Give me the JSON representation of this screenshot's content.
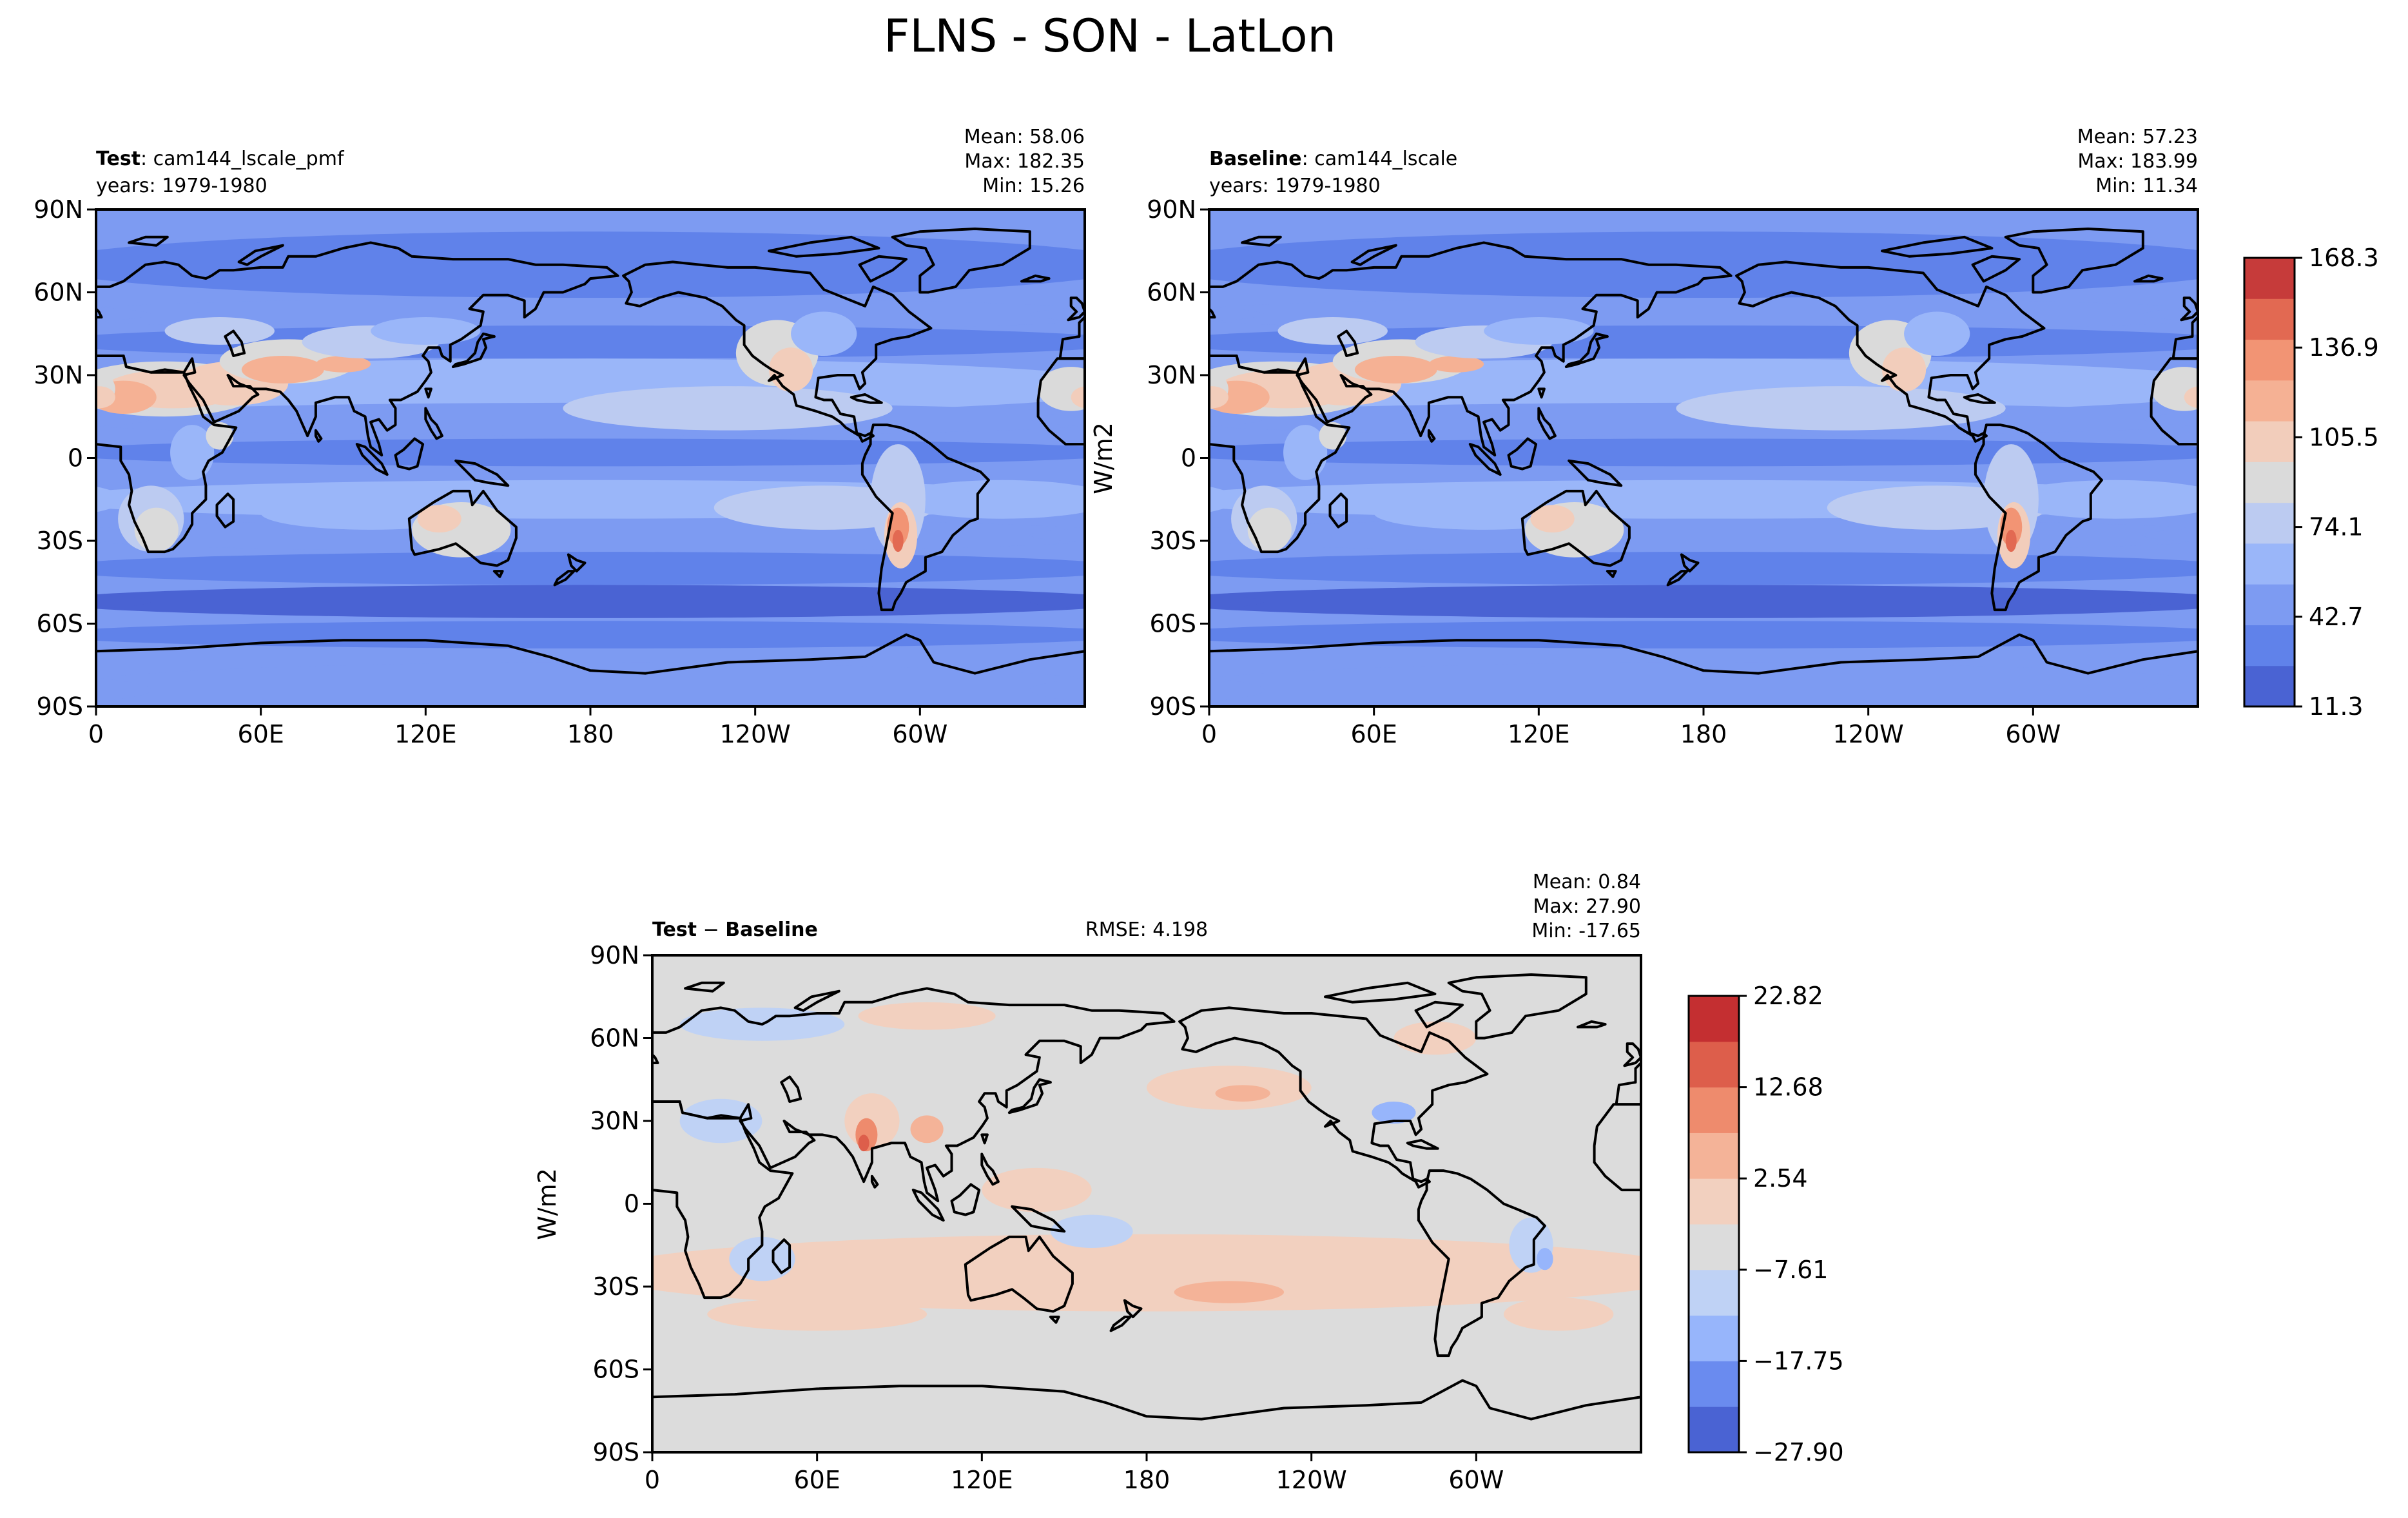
{
  "figure": {
    "title": "FLNS - SON - LatLon"
  },
  "chart_data": [
    {
      "type": "heatmap",
      "id": "test",
      "title_bold": "Test",
      "title_rest": ": cam144_lscale_pmf",
      "subtitle": "years: 1979-1980",
      "stats": {
        "mean": "Mean: 58.06",
        "max": "Max: 182.35",
        "min": "Min: 15.26"
      },
      "x_ticks": [
        "0",
        "60E",
        "120E",
        "180",
        "120W",
        "60W"
      ],
      "y_ticks": [
        "90N",
        "60N",
        "30N",
        "0",
        "30S",
        "60S",
        "90S"
      ],
      "xlim": [
        0,
        360
      ],
      "ylim": [
        -90,
        90
      ]
    },
    {
      "type": "heatmap",
      "id": "baseline",
      "title_bold": "Baseline",
      "title_rest": ": cam144_lscale",
      "subtitle": "years: 1979-1980",
      "stats": {
        "mean": "Mean: 57.23",
        "max": "Max: 183.99",
        "min": "Min: 11.34"
      },
      "x_ticks": [
        "0",
        "60E",
        "120E",
        "180",
        "120W",
        "60W"
      ],
      "y_ticks": [
        "90N",
        "60N",
        "30N",
        "0",
        "30S",
        "60S",
        "90S"
      ],
      "ylabel": "W/m2",
      "xlim": [
        0,
        360
      ],
      "ylim": [
        -90,
        90
      ],
      "colorbar": {
        "ticks": [
          "168.3",
          "136.9",
          "105.5",
          "74.1",
          "42.7",
          "11.3"
        ],
        "range": [
          11.3,
          183.99
        ]
      }
    },
    {
      "type": "heatmap",
      "id": "diff",
      "title_bold_a": "Test",
      "title_mid": " − ",
      "title_bold_b": "Baseline",
      "rmse": "RMSE: 4.198",
      "stats": {
        "mean": "Mean:  0.84",
        "max": "Max: 27.90",
        "min": "Min: -17.65"
      },
      "x_ticks": [
        "0",
        "60E",
        "120E",
        "180",
        "120W",
        "60W"
      ],
      "y_ticks": [
        "90N",
        "60N",
        "30N",
        "0",
        "30S",
        "60S",
        "90S"
      ],
      "ylabel": "W/m2",
      "xlim": [
        0,
        360
      ],
      "ylim": [
        -90,
        90
      ],
      "colorbar": {
        "ticks": [
          "22.82",
          "12.68",
          "2.54",
          "−7.61",
          "−17.75",
          "−27.90"
        ],
        "range": [
          -27.9,
          27.9
        ]
      }
    }
  ],
  "colors": {
    "seq": [
      "#4a63d3",
      "#6082ea",
      "#7d9bf2",
      "#9ab6f9",
      "#bccbf1",
      "#dadada",
      "#f2cdbb",
      "#f5b194",
      "#f29474",
      "#e26952",
      "#c63b3a"
    ],
    "diff": [
      "#4a63d3",
      "#6a8bef",
      "#97b5fb",
      "#bfd2f5",
      "#dcdcdc",
      "#f2d0bf",
      "#f4b398",
      "#ee8b6d",
      "#dd5e4b",
      "#c42f31"
    ]
  }
}
